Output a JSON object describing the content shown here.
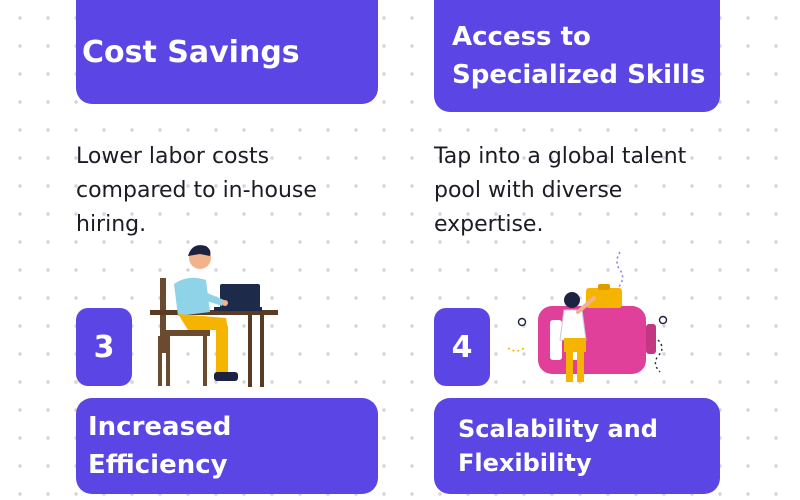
{
  "items": [
    {
      "title": "Cost Savings",
      "description": "Lower labor costs compared to in-house hiring."
    },
    {
      "title": "Access to Specialized Skills",
      "description": "Tap into a global talent pool with diverse expertise."
    },
    {
      "number": "3",
      "title": "Increased Efficiency"
    },
    {
      "number": "4",
      "title": "Scalability and Flexibility"
    }
  ],
  "colors": {
    "card": "#5b45e5",
    "text": "#1c1c24",
    "accent_pink": "#e0409a",
    "accent_yellow": "#f5b400"
  },
  "icons": [
    "person-at-laptop-illustration",
    "person-on-battery-illustration"
  ]
}
